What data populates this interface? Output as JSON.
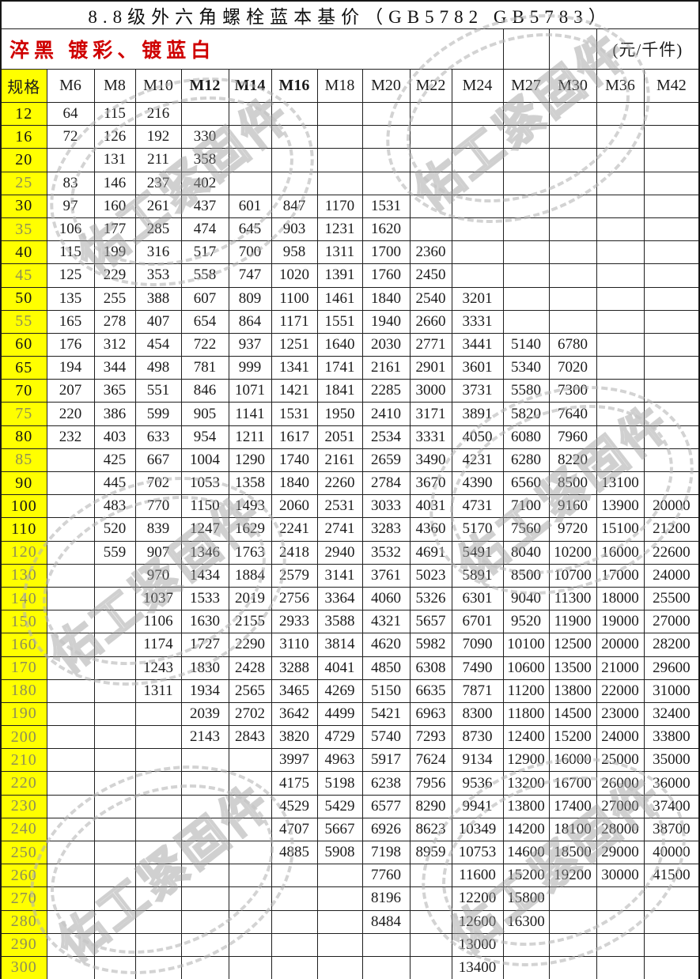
{
  "title": "8.8级外六角螺栓蓝本基价（GB5782  GB5783）",
  "subtitle": "淬黑 镀彩、镀蓝白",
  "unit": "(元/千件)",
  "watermark": {
    "text": "佑工紧固件"
  },
  "colors": {
    "spec_background": "#ffff00",
    "subtitle_red": "#cf0000",
    "grid_line": "#1f1f1f",
    "dim_spec_label": "#8e8e58",
    "watermark_gray": "#b4b4b4"
  },
  "table": {
    "spec_header": "规格",
    "columns": [
      "M6",
      "M8",
      "M10",
      "M12",
      "M14",
      "M16",
      "M18",
      "M20",
      "M22",
      "M24",
      "M27",
      "M30",
      "M36",
      "M42"
    ],
    "bold_columns": [
      "M12",
      "M14",
      "M16"
    ],
    "rows": [
      {
        "spec": "12",
        "dim": false,
        "values": [
          "64",
          "115",
          "216",
          "",
          "",
          "",
          "",
          "",
          "",
          "",
          "",
          "",
          "",
          ""
        ]
      },
      {
        "spec": "16",
        "dim": false,
        "values": [
          "72",
          "126",
          "192",
          "330",
          "",
          "",
          "",
          "",
          "",
          "",
          "",
          "",
          "",
          ""
        ]
      },
      {
        "spec": "20",
        "dim": false,
        "values": [
          "",
          "131",
          "211",
          "358",
          "",
          "",
          "",
          "",
          "",
          "",
          "",
          "",
          "",
          ""
        ]
      },
      {
        "spec": "25",
        "dim": true,
        "values": [
          "83",
          "146",
          "237",
          "402",
          "",
          "",
          "",
          "",
          "",
          "",
          "",
          "",
          "",
          ""
        ]
      },
      {
        "spec": "30",
        "dim": false,
        "values": [
          "97",
          "160",
          "261",
          "437",
          "601",
          "847",
          "1170",
          "1531",
          "",
          "",
          "",
          "",
          "",
          ""
        ]
      },
      {
        "spec": "35",
        "dim": true,
        "values": [
          "106",
          "177",
          "285",
          "474",
          "645",
          "903",
          "1231",
          "1620",
          "",
          "",
          "",
          "",
          "",
          ""
        ]
      },
      {
        "spec": "40",
        "dim": false,
        "values": [
          "115",
          "199",
          "316",
          "517",
          "700",
          "958",
          "1311",
          "1700",
          "2360",
          "",
          "",
          "",
          "",
          ""
        ]
      },
      {
        "spec": "45",
        "dim": true,
        "values": [
          "125",
          "229",
          "353",
          "558",
          "747",
          "1020",
          "1391",
          "1760",
          "2450",
          "",
          "",
          "",
          "",
          ""
        ]
      },
      {
        "spec": "50",
        "dim": false,
        "values": [
          "135",
          "255",
          "388",
          "607",
          "809",
          "1100",
          "1461",
          "1840",
          "2540",
          "3201",
          "",
          "",
          "",
          ""
        ]
      },
      {
        "spec": "55",
        "dim": true,
        "values": [
          "165",
          "278",
          "407",
          "654",
          "864",
          "1171",
          "1551",
          "1940",
          "2660",
          "3331",
          "",
          "",
          "",
          ""
        ]
      },
      {
        "spec": "60",
        "dim": false,
        "values": [
          "176",
          "312",
          "454",
          "722",
          "937",
          "1251",
          "1640",
          "2030",
          "2771",
          "3441",
          "5140",
          "6780",
          "",
          ""
        ]
      },
      {
        "spec": "65",
        "dim": false,
        "values": [
          "194",
          "344",
          "498",
          "781",
          "999",
          "1341",
          "1741",
          "2161",
          "2901",
          "3601",
          "5340",
          "7020",
          "",
          ""
        ]
      },
      {
        "spec": "70",
        "dim": false,
        "values": [
          "207",
          "365",
          "551",
          "846",
          "1071",
          "1421",
          "1841",
          "2285",
          "3000",
          "3731",
          "5580",
          "7300",
          "",
          ""
        ]
      },
      {
        "spec": "75",
        "dim": true,
        "values": [
          "220",
          "386",
          "599",
          "905",
          "1141",
          "1531",
          "1950",
          "2410",
          "3171",
          "3891",
          "5820",
          "7640",
          "",
          ""
        ]
      },
      {
        "spec": "80",
        "dim": false,
        "values": [
          "232",
          "403",
          "633",
          "954",
          "1211",
          "1617",
          "2051",
          "2534",
          "3331",
          "4050",
          "6080",
          "7960",
          "",
          ""
        ]
      },
      {
        "spec": "85",
        "dim": true,
        "values": [
          "",
          "425",
          "667",
          "1004",
          "1290",
          "1740",
          "2161",
          "2659",
          "3490",
          "4231",
          "6280",
          "8220",
          "",
          ""
        ]
      },
      {
        "spec": "90",
        "dim": false,
        "values": [
          "",
          "445",
          "702",
          "1053",
          "1358",
          "1840",
          "2260",
          "2784",
          "3670",
          "4390",
          "6560",
          "8500",
          "13100",
          ""
        ]
      },
      {
        "spec": "100",
        "dim": false,
        "values": [
          "",
          "483",
          "770",
          "1150",
          "1493",
          "2060",
          "2531",
          "3033",
          "4031",
          "4731",
          "7100",
          "9160",
          "13900",
          "20000"
        ]
      },
      {
        "spec": "110",
        "dim": false,
        "values": [
          "",
          "520",
          "839",
          "1247",
          "1629",
          "2241",
          "2741",
          "3283",
          "4360",
          "5170",
          "7560",
          "9720",
          "15100",
          "21200"
        ]
      },
      {
        "spec": "120",
        "dim": true,
        "values": [
          "",
          "559",
          "907",
          "1346",
          "1763",
          "2418",
          "2940",
          "3532",
          "4691",
          "5491",
          "8040",
          "10200",
          "16000",
          "22600"
        ]
      },
      {
        "spec": "130",
        "dim": true,
        "values": [
          "",
          "",
          "970",
          "1434",
          "1884",
          "2579",
          "3141",
          "3761",
          "5023",
          "5891",
          "8500",
          "10700",
          "17000",
          "24000"
        ]
      },
      {
        "spec": "140",
        "dim": true,
        "values": [
          "",
          "",
          "1037",
          "1533",
          "2019",
          "2756",
          "3364",
          "4060",
          "5326",
          "6301",
          "9040",
          "11300",
          "18000",
          "25500"
        ]
      },
      {
        "spec": "150",
        "dim": true,
        "values": [
          "",
          "",
          "1106",
          "1630",
          "2155",
          "2933",
          "3588",
          "4321",
          "5657",
          "6701",
          "9520",
          "11900",
          "19000",
          "27000"
        ]
      },
      {
        "spec": "160",
        "dim": true,
        "values": [
          "",
          "",
          "1174",
          "1727",
          "2290",
          "3110",
          "3814",
          "4620",
          "5982",
          "7090",
          "10100",
          "12500",
          "20000",
          "28200"
        ]
      },
      {
        "spec": "170",
        "dim": true,
        "values": [
          "",
          "",
          "1243",
          "1830",
          "2428",
          "3288",
          "4041",
          "4850",
          "6308",
          "7490",
          "10600",
          "13500",
          "21000",
          "29600"
        ]
      },
      {
        "spec": "180",
        "dim": true,
        "values": [
          "",
          "",
          "1311",
          "1934",
          "2565",
          "3465",
          "4269",
          "5150",
          "6635",
          "7871",
          "11200",
          "13800",
          "22000",
          "31000"
        ]
      },
      {
        "spec": "190",
        "dim": true,
        "values": [
          "",
          "",
          "",
          "2039",
          "2702",
          "3642",
          "4499",
          "5421",
          "6963",
          "8300",
          "11800",
          "14500",
          "23000",
          "32400"
        ]
      },
      {
        "spec": "200",
        "dim": true,
        "values": [
          "",
          "",
          "",
          "2143",
          "2843",
          "3820",
          "4729",
          "5740",
          "7293",
          "8730",
          "12400",
          "15200",
          "24000",
          "33800"
        ]
      },
      {
        "spec": "210",
        "dim": true,
        "values": [
          "",
          "",
          "",
          "",
          "",
          "3997",
          "4963",
          "5917",
          "7624",
          "9134",
          "12900",
          "16000",
          "25000",
          "35000"
        ]
      },
      {
        "spec": "220",
        "dim": true,
        "values": [
          "",
          "",
          "",
          "",
          "",
          "4175",
          "5198",
          "6238",
          "7956",
          "9536",
          "13200",
          "16700",
          "26000",
          "36000"
        ]
      },
      {
        "spec": "230",
        "dim": true,
        "values": [
          "",
          "",
          "",
          "",
          "",
          "4529",
          "5429",
          "6577",
          "8290",
          "9941",
          "13800",
          "17400",
          "27000",
          "37400"
        ]
      },
      {
        "spec": "240",
        "dim": true,
        "values": [
          "",
          "",
          "",
          "",
          "",
          "4707",
          "5667",
          "6926",
          "8623",
          "10349",
          "14200",
          "18100",
          "28000",
          "38700"
        ]
      },
      {
        "spec": "250",
        "dim": true,
        "values": [
          "",
          "",
          "",
          "",
          "",
          "4885",
          "5908",
          "7198",
          "8959",
          "10753",
          "14600",
          "18500",
          "29000",
          "40000"
        ]
      },
      {
        "spec": "260",
        "dim": true,
        "values": [
          "",
          "",
          "",
          "",
          "",
          "",
          "",
          "7760",
          "",
          "11600",
          "15200",
          "19200",
          "30000",
          "41500"
        ]
      },
      {
        "spec": "270",
        "dim": true,
        "values": [
          "",
          "",
          "",
          "",
          "",
          "",
          "",
          "8196",
          "",
          "12200",
          "15800",
          "",
          "",
          ""
        ]
      },
      {
        "spec": "280",
        "dim": true,
        "values": [
          "",
          "",
          "",
          "",
          "",
          "",
          "",
          "8484",
          "",
          "12600",
          "16300",
          "",
          "",
          ""
        ]
      },
      {
        "spec": "290",
        "dim": true,
        "values": [
          "",
          "",
          "",
          "",
          "",
          "",
          "",
          "",
          "",
          "13000",
          "",
          "",
          "",
          ""
        ]
      },
      {
        "spec": "300",
        "dim": true,
        "values": [
          "",
          "",
          "",
          "",
          "",
          "",
          "",
          "",
          "",
          "13400",
          "",
          "",
          "",
          ""
        ]
      }
    ]
  }
}
